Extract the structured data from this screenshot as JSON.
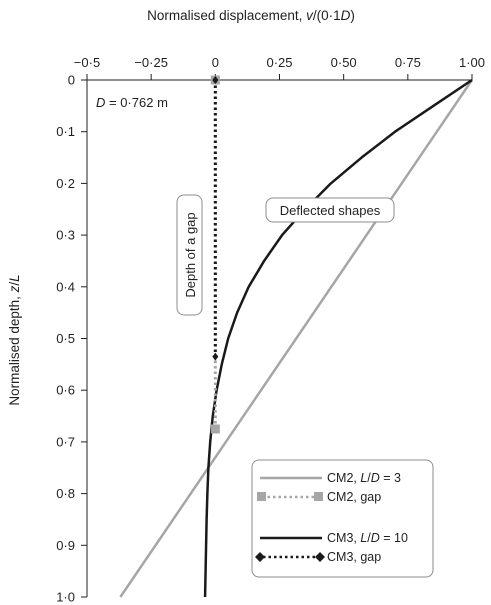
{
  "chart_data": {
    "type": "line",
    "xlabel_prefix": "Normalised displacement, ",
    "xlabel_var": "v",
    "xlabel_mid": "/(0·1",
    "xlabel_var2": "D",
    "xlabel_suffix": ")",
    "ylabel_prefix": "Normalised depth, ",
    "ylabel_var": "z",
    "ylabel_mid": "/",
    "ylabel_var2": "L",
    "xlim": [
      -0.5,
      1.0
    ],
    "ylim": [
      0,
      1.0
    ],
    "y_inverted": true,
    "x_axis_position": "top",
    "grid": false,
    "x_ticks": [
      -0.5,
      -0.25,
      0,
      0.25,
      0.5,
      0.75,
      1.0
    ],
    "x_tick_labels": [
      "−0·5",
      "−0·25",
      "0",
      "0·25",
      "0·50",
      "0·75",
      "1·00"
    ],
    "y_ticks": [
      0,
      0.1,
      0.2,
      0.3,
      0.4,
      0.5,
      0.6,
      0.7,
      0.8,
      0.9,
      1.0
    ],
    "y_tick_labels": [
      "0",
      "0·1",
      "0·2",
      "0·3",
      "0·4",
      "0·5",
      "0·6",
      "0·7",
      "0·8",
      "0·9",
      "1·0"
    ],
    "annotations": {
      "diameter_var": "D",
      "diameter_rest": " = 0·762 m",
      "deflected_shapes": "Deflected shapes",
      "depth_of_gap": "Depth of a gap"
    },
    "legend_position": "bottom-right",
    "series": [
      {
        "name": "CM2, L/D = 3",
        "legend_prefix": "CM2, ",
        "legend_var": "L",
        "legend_mid": "/",
        "legend_var2": "D",
        "legend_suffix": " = 3",
        "color": "#a6a6a6",
        "style": "solid",
        "x": [
          1.0,
          -0.37
        ],
        "y": [
          0.0,
          1.0
        ]
      },
      {
        "name": "CM2, gap",
        "legend_text": "CM2, gap",
        "color": "#a6a6a6",
        "style": "dotted",
        "marker": "square",
        "x": [
          0.0,
          0.0
        ],
        "y": [
          0.0,
          0.675
        ]
      },
      {
        "name": "CM3, L/D = 10",
        "legend_prefix": "CM3, ",
        "legend_var": "L",
        "legend_mid": "/",
        "legend_var2": "D",
        "legend_suffix": " = 10",
        "color": "#1a1a1a",
        "style": "solid",
        "x": [
          1.0,
          0.85,
          0.7,
          0.57,
          0.45,
          0.35,
          0.26,
          0.19,
          0.13,
          0.085,
          0.05,
          0.025,
          0.005,
          -0.01,
          -0.02,
          -0.027,
          -0.031,
          -0.034,
          -0.036,
          -0.038,
          -0.04
        ],
        "y": [
          0.0,
          0.05,
          0.1,
          0.15,
          0.2,
          0.25,
          0.3,
          0.35,
          0.4,
          0.45,
          0.5,
          0.55,
          0.6,
          0.65,
          0.7,
          0.75,
          0.8,
          0.85,
          0.9,
          0.95,
          1.0
        ]
      },
      {
        "name": "CM3, gap",
        "legend_text": "CM3, gap",
        "color": "#1a1a1a",
        "style": "dotted",
        "marker": "diamond",
        "x": [
          0.0,
          0.0
        ],
        "y": [
          0.0,
          0.535
        ]
      }
    ]
  }
}
